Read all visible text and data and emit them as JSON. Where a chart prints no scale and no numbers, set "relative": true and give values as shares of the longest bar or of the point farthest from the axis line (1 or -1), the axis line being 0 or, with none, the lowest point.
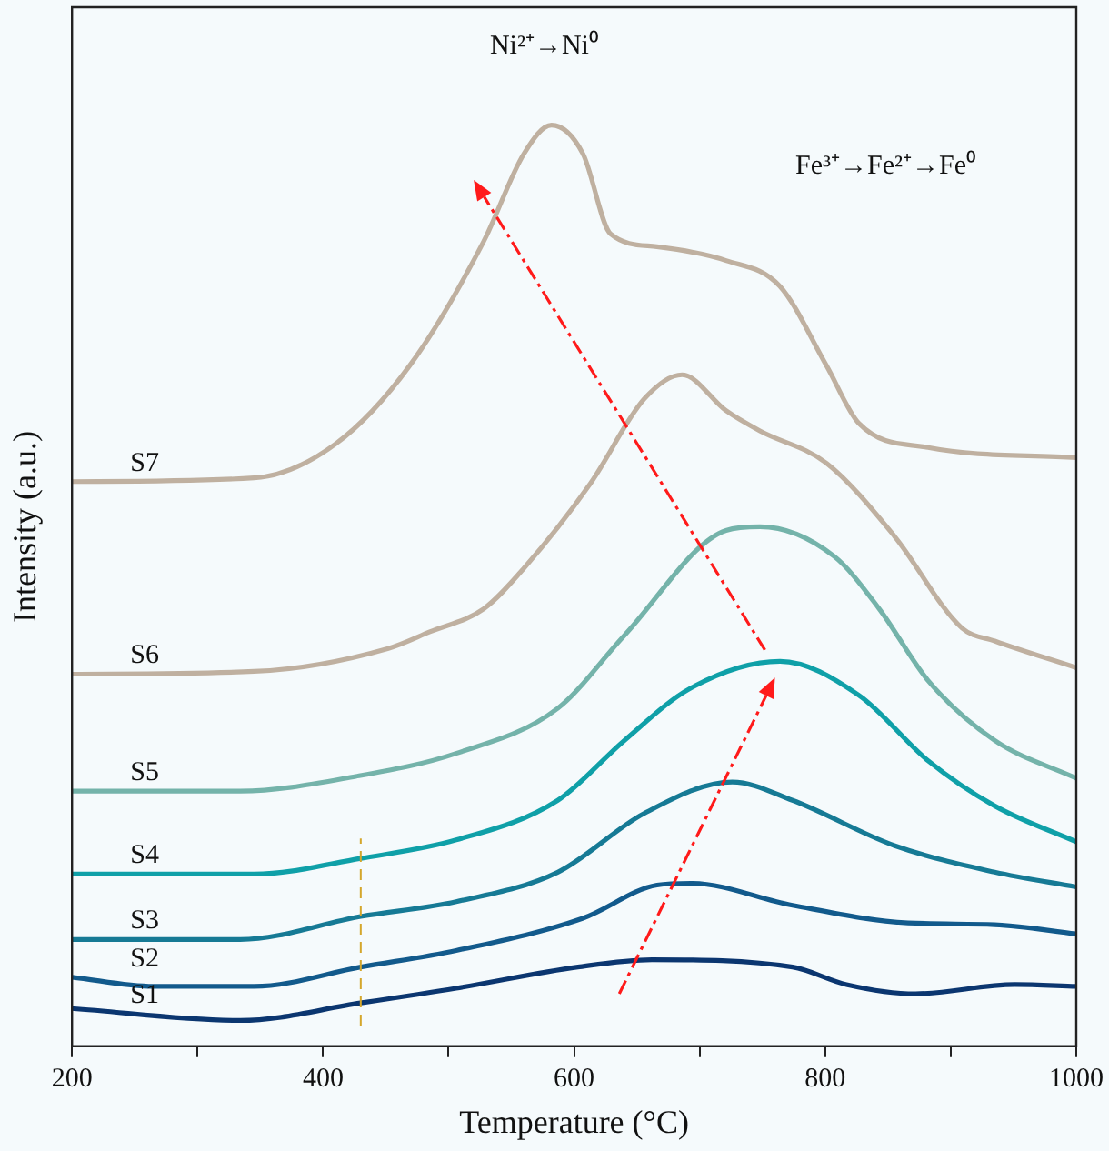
{
  "chart_data": {
    "type": "line",
    "xlabel": "Temperature (°C)",
    "ylabel": "Intensity (a.u.)",
    "relative": true,
    "xlim": [
      200,
      1000
    ],
    "xticks": [
      200,
      {
        "value": 300,
        "label": null
      },
      400,
      {
        "value": 500,
        "label": null
      },
      600,
      {
        "value": 700,
        "label": null
      },
      800,
      {
        "value": 900,
        "label": null
      },
      1000
    ],
    "grid": false,
    "legend": false,
    "marker": "none",
    "line_style": "solid",
    "annotations": [
      "Ni²⁺→Ni⁰",
      "Fe³⁺→Fe²⁺→Fe⁰"
    ],
    "ref_lines": [
      {
        "axis": "x",
        "value": 430,
        "label": null,
        "color": "#d4a72c",
        "line_style": "dashed"
      }
    ],
    "series": [
      {
        "name": "S1",
        "color": "#0b3670",
        "x": [
          200,
          334,
          430,
          506,
          603,
          662,
          774,
          817,
          872,
          951,
          1000
        ],
        "values": [
          0.041,
          0.028,
          0.047,
          0.063,
          0.086,
          0.094,
          0.086,
          0.067,
          0.057,
          0.067,
          0.065
        ]
      },
      {
        "name": "S2",
        "color": "#125a8c",
        "x": [
          200,
          265,
          345,
          430,
          506,
          607,
          666,
          693,
          774,
          866,
          935,
          1000
        ],
        "values": [
          0.075,
          0.065,
          0.065,
          0.086,
          0.104,
          0.139,
          0.175,
          0.177,
          0.153,
          0.134,
          0.132,
          0.122
        ]
      },
      {
        "name": "S3",
        "color": "#167a95",
        "x": [
          200,
          334,
          430,
          506,
          587,
          656,
          726,
          774,
          855,
          935,
          1000
        ],
        "values": [
          0.116,
          0.116,
          0.141,
          0.157,
          0.189,
          0.253,
          0.287,
          0.267,
          0.218,
          0.189,
          0.173
        ]
      },
      {
        "name": "S4",
        "color": "#0fa0a8",
        "x": [
          200,
          345,
          430,
          506,
          587,
          640,
          693,
          764,
          827,
          882,
          935,
          1000
        ],
        "values": [
          0.187,
          0.187,
          0.204,
          0.224,
          0.267,
          0.332,
          0.389,
          0.418,
          0.381,
          0.31,
          0.261,
          0.222
        ]
      },
      {
        "name": "S5",
        "color": "#74b3aa",
        "x": [
          200,
          334,
          426,
          506,
          587,
          640,
          721,
          748,
          807,
          843,
          882,
          935,
          1000
        ],
        "values": [
          0.277,
          0.277,
          0.293,
          0.318,
          0.367,
          0.446,
          0.56,
          0.564,
          0.532,
          0.475,
          0.397,
          0.332,
          0.291
        ]
      },
      {
        "name": "S6",
        "color": "#bfb0a0",
        "x": [
          200,
          345,
          452,
          485,
          528,
          560,
          613,
          656,
          686,
          721,
          748,
          801,
          855,
          909,
          935,
          1000
        ],
        "values": [
          0.404,
          0.407,
          0.432,
          0.45,
          0.475,
          0.519,
          0.611,
          0.703,
          0.729,
          0.69,
          0.668,
          0.633,
          0.554,
          0.454,
          0.44,
          0.411
        ]
      },
      {
        "name": "S7",
        "color": "#bfb0a0",
        "x": [
          200,
          345,
          410,
          469,
          528,
          560,
          582,
          607,
          629,
          666,
          721,
          764,
          801,
          827,
          882,
          1000
        ],
        "values": [
          0.613,
          0.617,
          0.654,
          0.739,
          0.874,
          0.969,
          1,
          0.969,
          0.882,
          0.868,
          0.853,
          0.825,
          0.739,
          0.676,
          0.65,
          0.639
        ]
      }
    ]
  }
}
